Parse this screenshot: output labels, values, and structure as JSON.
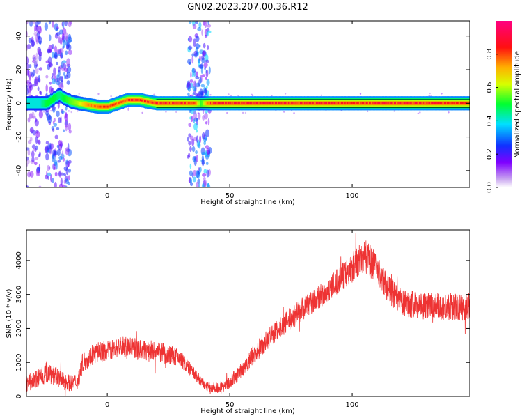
{
  "figure": {
    "title": "GN02.2023.207.00.36.R12"
  },
  "chart_data": [
    {
      "type": "heatmap",
      "title": "GN02.2023.207.00.36.R12",
      "xlabel": "Height of straight line (km)",
      "ylabel": "Frequency (Hz)",
      "xlim": [
        -33,
        148
      ],
      "ylim": [
        -50,
        49
      ],
      "xticks": [
        "0",
        "50",
        "100"
      ],
      "xtick_values": [
        0,
        50,
        100
      ],
      "yticks": [
        "40",
        "20",
        "0",
        "-20",
        "-40"
      ],
      "ytick_values": [
        40,
        20,
        0,
        -20,
        -40
      ],
      "grid": false,
      "colorbar": {
        "label": "Normalized spectral amplitude",
        "range": [
          0,
          1
        ],
        "ticks": [
          "0.0",
          "0.2",
          "0.4",
          "0.6",
          "0.8"
        ],
        "tick_values": [
          0.0,
          0.2,
          0.4,
          0.6,
          0.8
        ],
        "colormap": "rainbow (white-violet-blue-cyan-green-yellow-orange-red-magenta)"
      },
      "ridge": {
        "description_values": "dominant frequency ridge near 0 Hz, normalized amplitude",
        "x": [
          -28,
          -25,
          -22,
          -20,
          -18,
          -15,
          -12,
          -8,
          -4,
          0,
          4,
          8,
          10,
          13,
          16,
          20,
          25,
          30,
          35,
          38,
          42,
          50,
          60,
          70,
          80,
          90,
          100,
          110,
          120,
          130,
          140,
          148
        ],
        "frequency": [
          0,
          0,
          3,
          5,
          3,
          1,
          0,
          -1,
          -2,
          -2,
          0,
          2,
          2,
          2,
          1,
          0,
          0,
          0,
          0,
          0,
          0,
          0,
          0,
          0,
          0,
          0,
          0,
          0,
          0,
          0,
          0,
          0
        ],
        "amplitude": [
          0.4,
          0.5,
          0.5,
          0.45,
          0.5,
          0.55,
          0.6,
          0.75,
          0.8,
          0.85,
          0.8,
          0.8,
          0.9,
          0.85,
          0.85,
          0.9,
          0.9,
          0.9,
          0.85,
          0.5,
          0.9,
          0.9,
          0.9,
          0.9,
          0.9,
          0.9,
          0.85,
          0.9,
          0.9,
          0.9,
          0.85,
          0.85
        ]
      },
      "noise_bands": [
        {
          "x_range": [
            -33,
            -27
          ],
          "level": 0.2
        },
        {
          "x_range": [
            -25,
            -15
          ],
          "level": 0.25
        },
        {
          "x_range": [
            33,
            42
          ],
          "level": 0.3
        }
      ]
    },
    {
      "type": "line",
      "xlabel": "Height of straight line (km)",
      "ylabel": "SNR (10 * v/v)",
      "xlim": [
        -33,
        148
      ],
      "ylim": [
        0,
        4900
      ],
      "xticks": [
        "0",
        "50",
        "100"
      ],
      "xtick_values": [
        0,
        50,
        100
      ],
      "yticks": [
        "0",
        "1000",
        "2000",
        "3000",
        "4000"
      ],
      "ytick_values": [
        0,
        1000,
        2000,
        3000,
        4000
      ],
      "grid": false,
      "series": [
        {
          "color": "#ee3333",
          "x": [
            -33,
            -30,
            -27,
            -24,
            -21,
            -18,
            -15,
            -12,
            -10,
            -7,
            -4,
            0,
            5,
            10,
            15,
            20,
            25,
            30,
            35,
            40,
            45,
            50,
            55,
            60,
            65,
            70,
            75,
            80,
            85,
            90,
            95,
            100,
            103,
            106,
            110,
            115,
            120,
            125,
            130,
            135,
            140,
            145,
            148
          ],
          "y": [
            400,
            450,
            600,
            750,
            600,
            450,
            400,
            450,
            1000,
            1150,
            1300,
            1350,
            1450,
            1450,
            1350,
            1300,
            1250,
            1100,
            700,
            300,
            250,
            400,
            800,
            1250,
            1650,
            2000,
            2300,
            2600,
            2850,
            3100,
            3450,
            3800,
            4050,
            4100,
            3750,
            3150,
            2750,
            2700,
            2650,
            2650,
            2650,
            2600,
            2700
          ],
          "noise_amplitude": [
            250,
            250,
            350,
            350,
            300,
            250,
            250,
            250,
            300,
            300,
            300,
            300,
            300,
            300,
            300,
            300,
            300,
            250,
            200,
            150,
            150,
            200,
            250,
            300,
            300,
            300,
            350,
            350,
            350,
            350,
            400,
            450,
            500,
            500,
            450,
            400,
            400,
            400,
            400,
            400,
            400,
            400,
            400
          ]
        }
      ]
    }
  ]
}
